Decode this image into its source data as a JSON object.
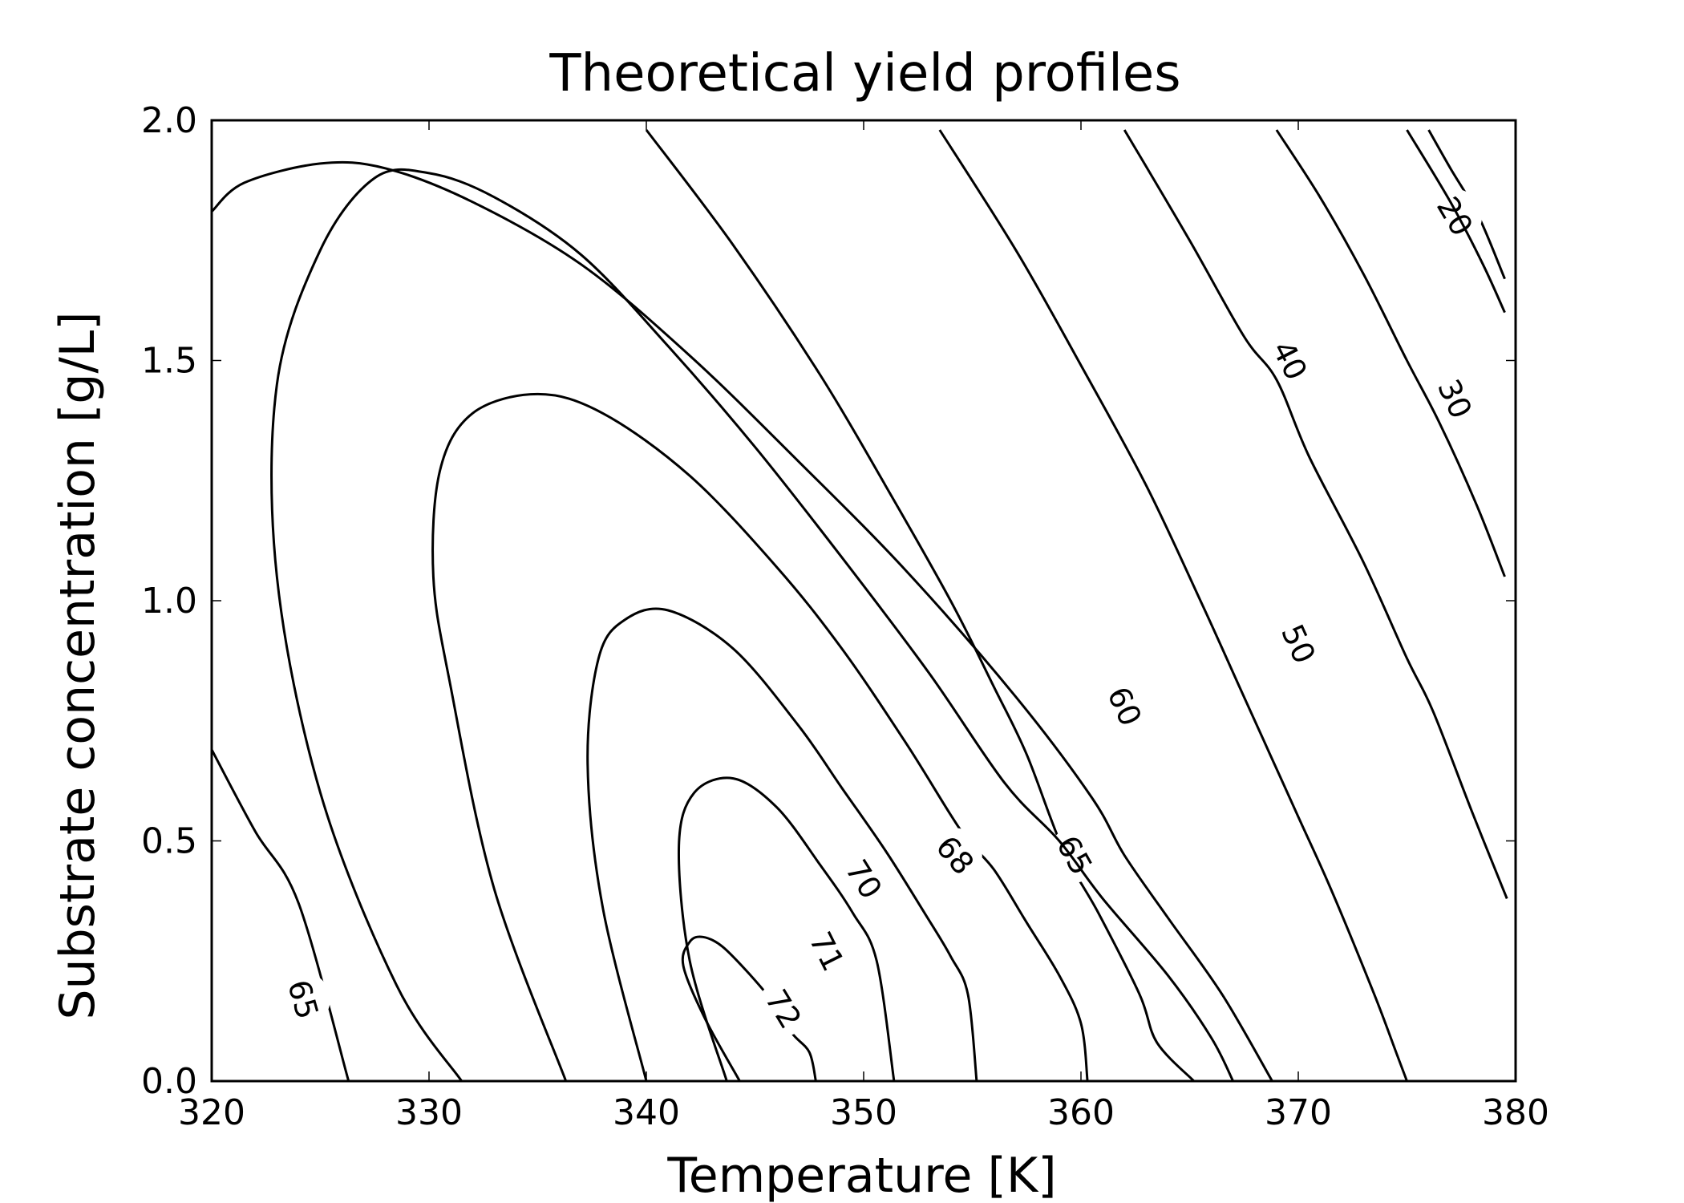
{
  "chart_data": {
    "type": "contour",
    "title": "Theoretical yield profiles",
    "xlabel": "Temperature [K]",
    "ylabel": "Substrate concentration [g/L]",
    "xlim": [
      320,
      380
    ],
    "ylim": [
      0.0,
      2.0
    ],
    "x_ticks": [
      "320",
      "330",
      "340",
      "350",
      "360",
      "370",
      "380"
    ],
    "y_ticks": [
      "0.0",
      "0.5",
      "1.0",
      "1.5",
      "2.0"
    ],
    "grid": false,
    "line_color": "#000000",
    "levels": [
      {
        "level": "65",
        "points": [
          [
            320.0,
            0.69
          ],
          [
            322.0,
            0.52
          ],
          [
            324.0,
            0.37
          ],
          [
            326.3,
            0.0
          ]
        ],
        "labels": [
          {
            "text": "65",
            "x": 324.2,
            "y": 0.17
          }
        ]
      },
      {
        "level": "70",
        "points": [
          [
            331.5,
            0.0
          ],
          [
            328.5,
            0.2
          ],
          [
            325.0,
            0.6
          ],
          [
            323.0,
            1.05
          ],
          [
            323.0,
            1.45
          ],
          [
            325.0,
            1.73
          ],
          [
            327.5,
            1.88
          ],
          [
            330.0,
            1.89
          ],
          [
            333.0,
            1.84
          ],
          [
            337.0,
            1.72
          ],
          [
            341.0,
            1.53
          ],
          [
            345.0,
            1.32
          ],
          [
            349.0,
            1.09
          ],
          [
            353.0,
            0.85
          ],
          [
            356.5,
            0.62
          ],
          [
            359.0,
            0.5
          ],
          [
            361.0,
            0.38
          ],
          [
            364.0,
            0.22
          ],
          [
            366.0,
            0.09
          ],
          [
            367.0,
            0.0
          ]
        ],
        "labels": []
      },
      {
        "level": "open-top-left",
        "points": [
          [
            320.0,
            1.81
          ],
          [
            321.5,
            1.87
          ],
          [
            325.0,
            1.91
          ],
          [
            328.0,
            1.9
          ],
          [
            332.0,
            1.83
          ],
          [
            337.0,
            1.7
          ],
          [
            342.0,
            1.51
          ],
          [
            347.0,
            1.29
          ],
          [
            352.0,
            1.06
          ],
          [
            357.0,
            0.8
          ],
          [
            360.5,
            0.59
          ],
          [
            362.0,
            0.47
          ],
          [
            364.0,
            0.34
          ],
          [
            366.5,
            0.18
          ],
          [
            368.8,
            0.0
          ]
        ],
        "labels": []
      },
      {
        "level": "68",
        "points": [
          [
            336.3,
            0.0
          ],
          [
            333.0,
            0.4
          ],
          [
            331.0,
            0.82
          ],
          [
            330.2,
            1.05
          ],
          [
            330.5,
            1.27
          ],
          [
            332.0,
            1.39
          ],
          [
            335.0,
            1.43
          ],
          [
            338.0,
            1.39
          ],
          [
            342.0,
            1.26
          ],
          [
            346.0,
            1.07
          ],
          [
            349.0,
            0.9
          ],
          [
            352.0,
            0.7
          ],
          [
            354.5,
            0.52
          ],
          [
            356.0,
            0.44
          ],
          [
            357.5,
            0.33
          ],
          [
            359.0,
            0.22
          ],
          [
            360.0,
            0.12
          ],
          [
            360.3,
            0.0
          ]
        ],
        "labels": [
          {
            "text": "68",
            "x": 354.2,
            "y": 0.47
          }
        ]
      },
      {
        "level": "70",
        "points": [
          [
            340.0,
            0.0
          ],
          [
            338.0,
            0.36
          ],
          [
            337.3,
            0.66
          ],
          [
            337.8,
            0.88
          ],
          [
            339.0,
            0.96
          ],
          [
            341.0,
            0.98
          ],
          [
            344.0,
            0.9
          ],
          [
            347.0,
            0.74
          ],
          [
            349.0,
            0.61
          ],
          [
            351.0,
            0.48
          ],
          [
            352.8,
            0.35
          ],
          [
            354.0,
            0.26
          ],
          [
            354.8,
            0.18
          ],
          [
            355.2,
            0.0
          ]
        ],
        "labels": [
          {
            "text": "70",
            "x": 350.0,
            "y": 0.42
          }
        ]
      },
      {
        "level": "71",
        "points": [
          [
            343.7,
            0.0
          ],
          [
            342.0,
            0.25
          ],
          [
            341.5,
            0.49
          ],
          [
            342.2,
            0.6
          ],
          [
            344.0,
            0.63
          ],
          [
            346.0,
            0.57
          ],
          [
            348.0,
            0.45
          ],
          [
            349.5,
            0.35
          ],
          [
            350.6,
            0.25
          ],
          [
            351.4,
            0.0
          ]
        ],
        "labels": [
          {
            "text": "71",
            "x": 348.3,
            "y": 0.27
          }
        ]
      },
      {
        "level": "72",
        "points": [
          [
            344.3,
            0.0
          ],
          [
            342.7,
            0.13
          ],
          [
            341.7,
            0.24
          ],
          [
            342.0,
            0.29
          ],
          [
            342.6,
            0.3
          ],
          [
            343.5,
            0.28
          ],
          [
            344.8,
            0.22
          ],
          [
            345.9,
            0.16
          ],
          [
            346.7,
            0.1
          ],
          [
            347.5,
            0.06
          ],
          [
            347.8,
            0.0
          ]
        ],
        "labels": [
          {
            "text": "72",
            "x": 346.3,
            "y": 0.15
          }
        ]
      },
      {
        "level": "65",
        "points": [
          [
            340.0,
            1.98
          ],
          [
            344.0,
            1.74
          ],
          [
            348.0,
            1.47
          ],
          [
            351.0,
            1.24
          ],
          [
            354.0,
            1.0
          ],
          [
            356.0,
            0.82
          ],
          [
            357.5,
            0.68
          ],
          [
            359.2,
            0.48
          ],
          [
            360.8,
            0.35
          ],
          [
            362.7,
            0.18
          ],
          [
            363.5,
            0.08
          ],
          [
            365.2,
            0.0
          ]
        ],
        "labels": [
          {
            "text": "65",
            "x": 359.7,
            "y": 0.47
          }
        ]
      },
      {
        "level": "60",
        "points": [
          [
            353.5,
            1.98
          ],
          [
            357.0,
            1.73
          ],
          [
            360.0,
            1.49
          ],
          [
            363.0,
            1.24
          ],
          [
            365.5,
            1.0
          ],
          [
            367.3,
            0.82
          ],
          [
            368.7,
            0.68
          ],
          [
            370.0,
            0.55
          ],
          [
            371.5,
            0.4
          ],
          [
            373.5,
            0.18
          ],
          [
            374.5,
            0.06
          ],
          [
            375.0,
            0.0
          ]
        ],
        "labels": [
          {
            "text": "60",
            "x": 362.0,
            "y": 0.78
          }
        ]
      },
      {
        "level": "50",
        "points": [
          [
            362.0,
            1.98
          ],
          [
            365.0,
            1.75
          ],
          [
            367.5,
            1.55
          ],
          [
            369.0,
            1.46
          ],
          [
            370.5,
            1.3
          ],
          [
            373.0,
            1.08
          ],
          [
            375.0,
            0.88
          ],
          [
            376.2,
            0.77
          ],
          [
            378.0,
            0.56
          ],
          [
            379.6,
            0.38
          ]
        ],
        "labels": [
          {
            "text": "50",
            "x": 370.0,
            "y": 0.91
          }
        ]
      },
      {
        "level": "40",
        "points": [
          [
            369.0,
            1.98
          ],
          [
            371.0,
            1.84
          ],
          [
            373.0,
            1.68
          ],
          [
            375.0,
            1.5
          ],
          [
            376.5,
            1.37
          ],
          [
            378.2,
            1.2
          ],
          [
            379.5,
            1.05
          ]
        ],
        "labels": [
          {
            "text": "40",
            "x": 369.6,
            "y": 1.5
          }
        ]
      },
      {
        "level": "30",
        "points": [
          [
            375.0,
            1.98
          ],
          [
            377.0,
            1.83
          ],
          [
            378.5,
            1.7
          ],
          [
            379.5,
            1.6
          ]
        ],
        "labels": [
          {
            "text": "30",
            "x": 377.2,
            "y": 1.42
          }
        ]
      },
      {
        "level": "20",
        "points": [
          [
            376.0,
            1.98
          ],
          [
            377.0,
            1.9
          ],
          [
            378.3,
            1.8
          ],
          [
            379.5,
            1.67
          ]
        ],
        "labels": [
          {
            "text": "20",
            "x": 377.2,
            "y": 1.8
          }
        ]
      }
    ]
  }
}
